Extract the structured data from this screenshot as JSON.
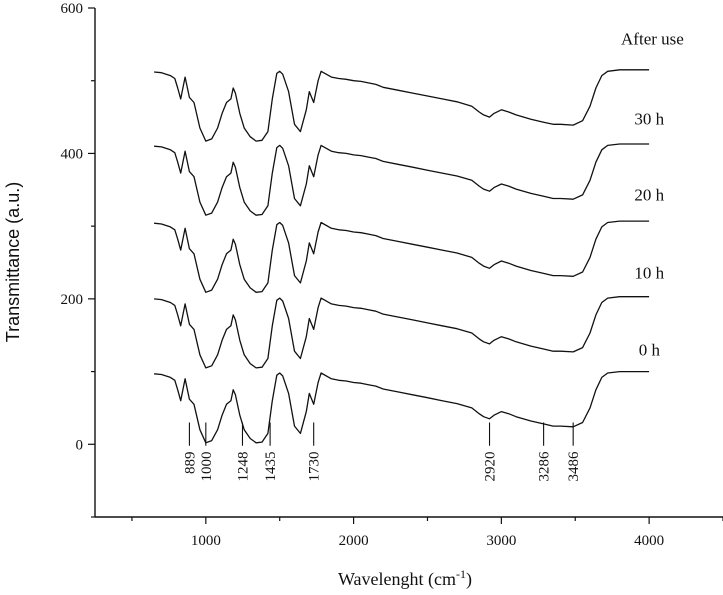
{
  "chart_data": {
    "type": "line",
    "title": "",
    "xlabel": "Wavelenght (cm",
    "xlabel_sup": "-1",
    "xlabel_close": ")",
    "ylabel": "Transmittance (a.u.)",
    "xlim": [
      250,
      4500
    ],
    "ylim": [
      -100,
      600
    ],
    "xticks": [
      1000,
      2000,
      3000,
      4000
    ],
    "xtick_labels": [
      "1000",
      "2000",
      "3000",
      "4000"
    ],
    "yticks": [
      0,
      200,
      400,
      600
    ],
    "ytick_labels": [
      "0",
      "200",
      "400",
      "600"
    ],
    "grid": false,
    "series": [
      {
        "name": "0 h",
        "offset": 0,
        "label_x": 3930,
        "label_y": 122
      },
      {
        "name": "10 h",
        "offset": 103,
        "label_x": 3900,
        "label_y": 228
      },
      {
        "name": "20 h",
        "offset": 207,
        "label_x": 3900,
        "label_y": 335
      },
      {
        "name": "30 h",
        "offset": 313,
        "label_x": 3900,
        "label_y": 440
      },
      {
        "name": "After use",
        "offset": 415,
        "label_x": 3810,
        "label_y": 550
      }
    ],
    "base_spectrum": {
      "x": [
        650,
        700,
        760,
        790,
        810,
        830,
        860,
        889,
        920,
        960,
        1000,
        1040,
        1080,
        1110,
        1140,
        1170,
        1185,
        1200,
        1230,
        1260,
        1300,
        1340,
        1380,
        1420,
        1450,
        1480,
        1500,
        1520,
        1560,
        1600,
        1640,
        1680,
        1700,
        1730,
        1760,
        1780,
        1850,
        1900,
        1950,
        2000,
        2050,
        2100,
        2150,
        2200,
        2300,
        2400,
        2500,
        2600,
        2700,
        2800,
        2850,
        2880,
        2920,
        2950,
        3000,
        3050,
        3100,
        3200,
        3286,
        3350,
        3400,
        3486,
        3550,
        3600,
        3640,
        3680,
        3720,
        3800,
        4000
      ],
      "y": [
        97,
        96,
        92,
        88,
        75,
        60,
        90,
        62,
        55,
        20,
        2,
        5,
        20,
        40,
        55,
        60,
        75,
        68,
        40,
        20,
        8,
        2,
        3,
        15,
        60,
        95,
        98,
        94,
        70,
        25,
        15,
        45,
        70,
        55,
        85,
        98,
        90,
        88,
        87,
        85,
        84,
        82,
        80,
        76,
        72,
        68,
        64,
        60,
        56,
        50,
        42,
        38,
        35,
        40,
        45,
        42,
        38,
        32,
        28,
        25,
        25,
        24,
        30,
        50,
        75,
        92,
        98,
        100,
        100
      ]
    },
    "peak_annotations": [
      {
        "label": "889",
        "x": 889
      },
      {
        "label": "1000",
        "x": 1000
      },
      {
        "label": "1248",
        "x": 1248
      },
      {
        "label": "1435",
        "x": 1435
      },
      {
        "label": "1730",
        "x": 1730
      },
      {
        "label": "2920",
        "x": 2920
      },
      {
        "label": "3286",
        "x": 3286
      },
      {
        "label": "3486",
        "x": 3486
      }
    ]
  }
}
